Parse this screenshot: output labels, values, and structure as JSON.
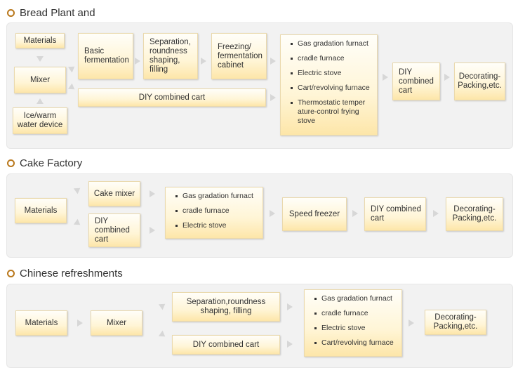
{
  "sections": [
    {
      "title": "Bread Plant and",
      "boxes": {
        "materials": "Materials",
        "mixer": "Mixer",
        "ice_water": "Ice/warm water device",
        "basic_fermentation": "Basic fermentation",
        "separation": "Separation, roundness shaping, filling",
        "freezing": "Freezing/ fermentation cabinet",
        "diy_combined_cart_wide": "DIY combined cart",
        "diy_combined_cart": "DIY combined cart",
        "decorating": "Decorating-Packing,etc."
      },
      "ovens": [
        "Gas gradation furnact",
        "cradle furnace",
        "Electric stove",
        "Cart/revolving furnace",
        "Thermostatic temper ature-control frying stove"
      ]
    },
    {
      "title": "Cake Factory",
      "boxes": {
        "materials": "Materials",
        "cake_mixer": "Cake mixer",
        "diy_combined_cart_left": "DIY combined cart",
        "speed_freezer": "Speed freezer",
        "diy_combined_cart": "DIY combined cart",
        "decorating": "Decorating-Packing,etc."
      },
      "ovens": [
        "Gas gradation furnact",
        "cradle furnace",
        "Electric stove"
      ]
    },
    {
      "title": "Chinese refreshments",
      "boxes": {
        "materials": "Materials",
        "mixer": "Mixer",
        "separation": "Separation,roundness shaping, filling",
        "diy_combined_cart": "DIY combined cart",
        "decorating": "Decorating-Packing,etc."
      },
      "ovens": [
        "Gas gradation furnact",
        "cradle furnace",
        "Electric stove",
        "Cart/revolving furnace"
      ]
    }
  ]
}
